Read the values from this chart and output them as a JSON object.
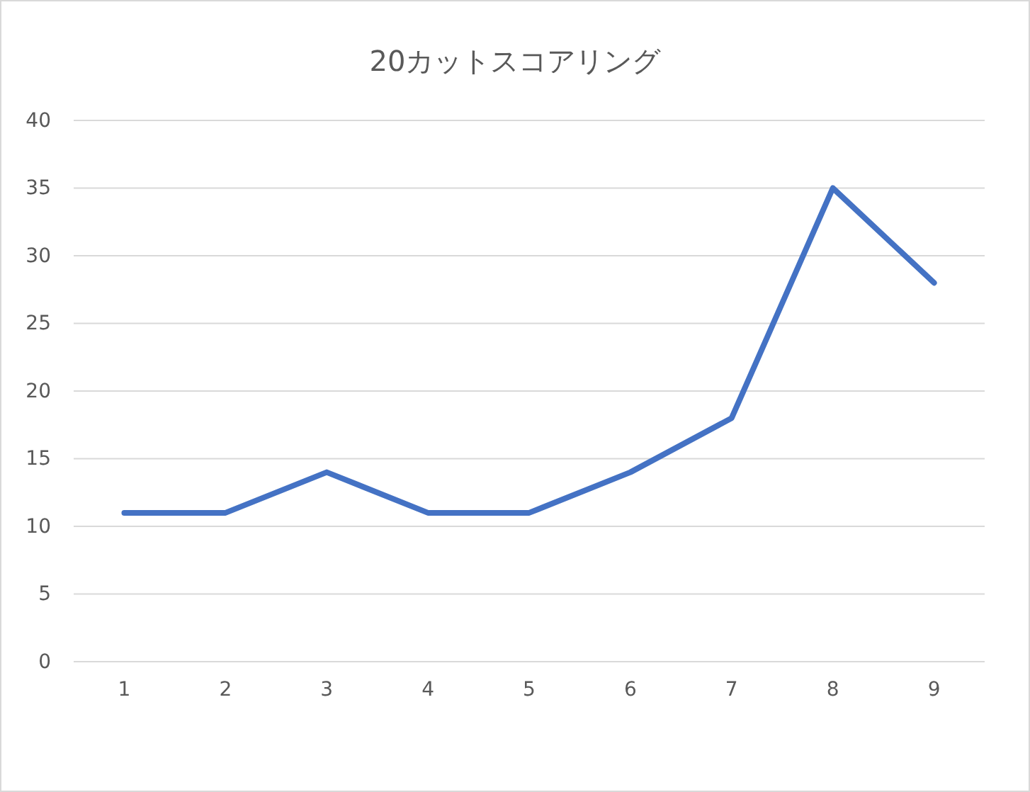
{
  "chart_data": {
    "type": "line",
    "title": "20カットスコアリング",
    "categories": [
      "1",
      "2",
      "3",
      "4",
      "5",
      "6",
      "7",
      "8",
      "9"
    ],
    "series": [
      {
        "color": "#4472c4",
        "values": [
          11,
          11,
          14,
          11,
          11,
          14,
          18,
          35,
          28
        ]
      }
    ],
    "ylim": [
      0,
      40
    ],
    "yticks": [
      0,
      5,
      10,
      15,
      20,
      25,
      30,
      35,
      40
    ],
    "grid": "y",
    "marker": "none",
    "line_style": "solid"
  }
}
